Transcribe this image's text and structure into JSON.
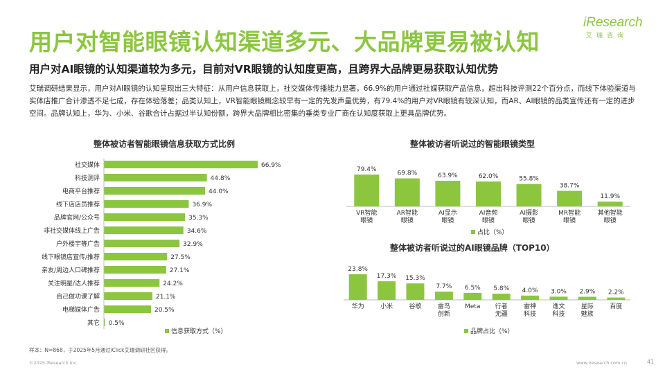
{
  "page": {
    "title": "用户对智能眼镜认知渠道多元、大品牌更易被认知",
    "subtitle": "用户对AI眼镜的认知渠道较为多元，目前对VR眼镜的认知度更高，且跨界大品牌更易获取认知优势",
    "body": "艾瑞调研结果显示，用户对AI眼镜的认知呈现出三大特征：从用户信息获取上，社交媒体传播能力显著，66.9%的用户通过社媒获取产品信息，超出科技评测22个百分点，而线下体验渠道与实体店推广合计渗透不足七成，存在体验落差；品类认知上，VR智能眼镜概念较早有一定的先发声量优势，有79.4%的用户对VR眼镜有较深认知，而AR、AI眼镜的品类宣传还有一定的进步空间。品牌认知上，华为、小米、谷歌合计占据过半认知份额，跨界大品牌相比密集的垂类专业厂商在认知度获取上更具品牌优势。",
    "footnote": "样本：N=868，于2025年5月通过iClick艾瑞调研社区获得。",
    "copyright": "©2025 iResearch Inc.",
    "website": "www.iresearch.com.cn",
    "page_number": "41",
    "accent_color": "#8cc63f"
  },
  "logo": {
    "name": "iResearch",
    "sub": "艾瑞咨询"
  },
  "chart_data": [
    {
      "type": "bar",
      "orientation": "horizontal",
      "title": "整体被访者智能眼镜信息获取方式比例",
      "categories": [
        "社交媒体",
        "科技测评",
        "电商平台推荐",
        "线下店店员推荐",
        "品牌官网/公众号",
        "非社交媒体线上广告",
        "户外楼宇等广告",
        "线下眼镜店宣传/推荐",
        "亲友/周边人口碑推荐",
        "关注明星/达人推荐",
        "自己做功课了解",
        "电梯媒体广告",
        "其它"
      ],
      "values": [
        66.9,
        44.8,
        44.0,
        36.9,
        35.3,
        34.6,
        32.9,
        27.5,
        27.1,
        24.2,
        21.1,
        20.5,
        0.5
      ],
      "value_labels": [
        "66.9%",
        "44.8%",
        "44.0%",
        "36.9%",
        "35.3%",
        "34.6%",
        "32.9%",
        "27.5%",
        "27.1%",
        "24.2%",
        "21.1%",
        "20.5%",
        "0.5%"
      ],
      "legend": "信息获取方式（%）",
      "color": "#8cc63f"
    },
    {
      "type": "bar",
      "orientation": "vertical",
      "title": "整体被访者听说过的智能眼镜类型",
      "categories": [
        [
          "VR智能",
          "眼镜"
        ],
        [
          "AR智能",
          "眼镜"
        ],
        [
          "AI显示",
          "眼镜"
        ],
        [
          "AI音频",
          "眼镜"
        ],
        [
          "AI摄影",
          "眼镜"
        ],
        [
          "MR智能",
          "眼镜"
        ],
        [
          "其他智能",
          "眼镜"
        ]
      ],
      "values": [
        79.4,
        69.8,
        63.9,
        62.0,
        55.8,
        38.7,
        11.9
      ],
      "value_labels": [
        "79.4%",
        "69.8%",
        "63.9%",
        "62.0%",
        "55.8%",
        "38.7%",
        "11.9%"
      ],
      "legend": "占比（%）",
      "color": "#8cc63f"
    },
    {
      "type": "bar",
      "orientation": "vertical",
      "title": "整体被访者听说过的AI眼镜品牌（TOP10）",
      "categories": [
        [
          "华为"
        ],
        [
          "小米"
        ],
        [
          "谷歌"
        ],
        [
          "雷鸟",
          "创新"
        ],
        [
          "Meta"
        ],
        [
          "行者",
          "无疆"
        ],
        [
          "雷神",
          "科技"
        ],
        [
          "逸文",
          "科技"
        ],
        [
          "星际",
          "魅族"
        ],
        [
          "百度"
        ]
      ],
      "values": [
        23.8,
        17.3,
        15.3,
        7.7,
        6.5,
        5.8,
        4.0,
        3.0,
        2.9,
        2.2
      ],
      "value_labels": [
        "23.8%",
        "17.3%",
        "15.3%",
        "7.7%",
        "6.5%",
        "5.8%",
        "4.0%",
        "3.0%",
        "2.9%",
        "2.2%"
      ],
      "legend": "品牌占比（%）",
      "color": "#8cc63f"
    }
  ]
}
